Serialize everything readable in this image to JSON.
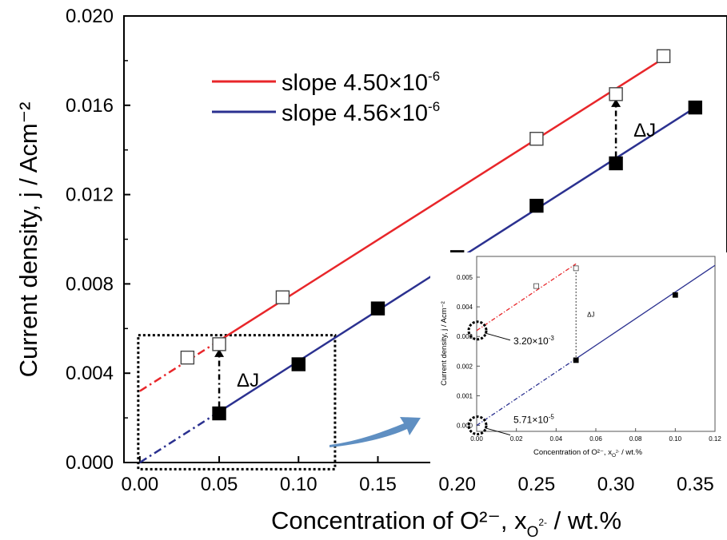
{
  "colors": {
    "red_line": "#e8262a",
    "blue_line": "#2b3190",
    "arrow_blue": "#5f8fc2",
    "axis": "#000000"
  },
  "chart_data": [
    {
      "type": "scatter",
      "panel": "main",
      "xlabel": "Concentration of O²⁻, x",
      "xlabel_sub": "O",
      "xlabel_sub_sup": "2-",
      "xlabel_tail": " / wt.%",
      "ylabel": "Current density, j / Acm⁻²",
      "xlim": [
        -0.01,
        0.37
      ],
      "ylim": [
        0.0,
        0.02
      ],
      "xticks": [
        0.0,
        0.05,
        0.1,
        0.15,
        0.2,
        0.25,
        0.3,
        0.35
      ],
      "xtick_labels": [
        "0.00",
        "0.05",
        "0.10",
        "0.15",
        "0.20",
        "0.25",
        "0.30",
        "0.35"
      ],
      "yticks": [
        0.0,
        0.004,
        0.008,
        0.012,
        0.016,
        0.02
      ],
      "ytick_labels": [
        "0.000",
        "0.004",
        "0.008",
        "0.012",
        "0.016",
        "0.020"
      ],
      "legend_position": "top-left",
      "series": [
        {
          "name": "slope 4.50×10⁻⁶",
          "legend_text": "slope 4.50×10",
          "legend_exp": "-6",
          "marker": "open-square",
          "color": "#e8262a",
          "x": [
            0.03,
            0.05,
            0.09,
            0.25,
            0.3,
            0.33
          ],
          "y": [
            0.0047,
            0.0053,
            0.0074,
            0.0145,
            0.0165,
            0.0182
          ],
          "fit_intercept": 0.0032,
          "fit_end": [
            0.33,
            0.0181
          ],
          "dashed_until_x": 0.05
        },
        {
          "name": "slope 4.56×10⁻⁶",
          "legend_text": "slope 4.56×10",
          "legend_exp": "-6",
          "marker": "filled-square",
          "color": "#2b3190",
          "x": [
            0.05,
            0.1,
            0.15,
            0.2,
            0.25,
            0.3,
            0.35
          ],
          "y": [
            0.0022,
            0.0044,
            0.0069,
            0.0092,
            0.0115,
            0.0134,
            0.0159
          ],
          "fit_intercept": 0.0,
          "fit_end": [
            0.35,
            0.0159
          ],
          "dashed_until_x": 0.05
        }
      ],
      "annotations": [
        {
          "label": "ΔJ",
          "at_x": 0.05,
          "from_y": 0.0022,
          "to_y": 0.0053
        },
        {
          "label": "ΔJ",
          "at_x": 0.3,
          "from_y": 0.0134,
          "to_y": 0.0165
        }
      ],
      "zoom_box": {
        "x": [
          -0.001,
          0.123
        ],
        "y": [
          -0.0003,
          0.0057
        ]
      }
    },
    {
      "type": "scatter",
      "panel": "inset",
      "xlabel": "Concentration of O²⁻, x",
      "xlabel_sub": "O",
      "xlabel_sub_sup": "2-",
      "xlabel_tail": " / wt.%",
      "ylabel": "Current density, j / Acm⁻²",
      "xlim": [
        0.0,
        0.12
      ],
      "ylim": [
        -0.0002,
        0.0057
      ],
      "xticks": [
        0.0,
        0.02,
        0.04,
        0.06,
        0.08,
        0.1,
        0.12
      ],
      "xtick_labels": [
        "0.00",
        "0.02",
        "0.04",
        "0.06",
        "0.08",
        "0.10",
        "0.12"
      ],
      "yticks": [
        0.0,
        0.001,
        0.002,
        0.003,
        0.004,
        0.005
      ],
      "ytick_labels": [
        "0.000",
        "0.001",
        "0.002",
        "0.003",
        "0.004",
        "0.005"
      ],
      "series": [
        {
          "marker": "open-square",
          "color": "#e8262a",
          "x": [
            0.03,
            0.05
          ],
          "y": [
            0.0047,
            0.0053
          ],
          "fit_intercept": 0.0032,
          "fit_end": [
            0.05,
            0.00545
          ],
          "dashed_until_x": 0.05
        },
        {
          "marker": "filled-square",
          "color": "#2b3190",
          "x": [
            0.05,
            0.1
          ],
          "y": [
            0.0022,
            0.0044
          ],
          "fit_intercept": 0.0,
          "fit_end": [
            0.12,
            0.0054
          ],
          "dashed_until_x": 0.05
        }
      ],
      "annotations": [
        {
          "label": "ΔJ",
          "at_x": 0.05,
          "from_y": 0.0022,
          "to_y": 0.0053
        },
        {
          "callout_text": "3.20×10",
          "callout_exp": "-3",
          "value_x": 0.0,
          "value_y": 0.0032
        },
        {
          "callout_text": "5.71×10",
          "callout_exp": "-5",
          "value_x": 0.0,
          "value_y": 0.0
        }
      ]
    }
  ]
}
